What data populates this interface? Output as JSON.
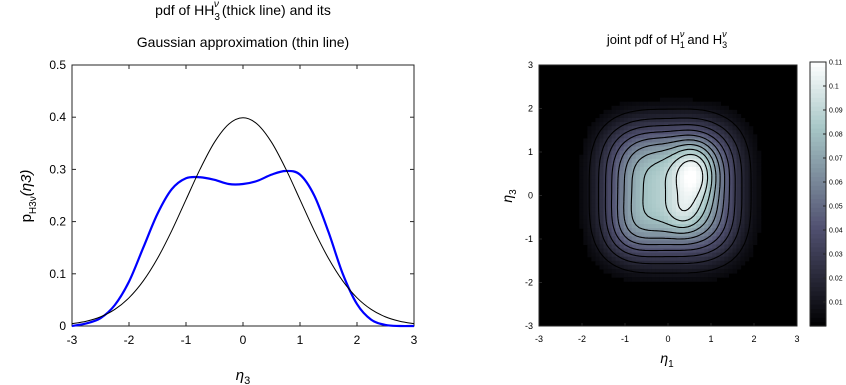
{
  "chart_data": [
    {
      "type": "line",
      "title": "pdf of H3ν (thick line) and its Gaussian approximation (thin line)",
      "title_lines": [
        "pdf of H",
        "(thick line) and its",
        "Gaussian approximation (thin line)"
      ],
      "title_sym": {
        "base": "H",
        "sub": "3",
        "sup": "ν"
      },
      "xlabel": {
        "base": "η",
        "sub": "3"
      },
      "ylabel": {
        "base": "p",
        "sub": "H3ν",
        "arg": "(η3)"
      },
      "xlim": [
        -3,
        3
      ],
      "ylim": [
        0,
        0.5
      ],
      "xticks": [
        "-3",
        "-2",
        "-1",
        "0",
        "1",
        "2",
        "3"
      ],
      "yticks": [
        "0",
        "0.1",
        "0.2",
        "0.3",
        "0.4",
        "0.5"
      ],
      "series": [
        {
          "name": "pdf of H3ν (thick line)",
          "color": "#0000ff",
          "x": [
            -3.0,
            -2.75,
            -2.5,
            -2.25,
            -2.0,
            -1.75,
            -1.5,
            -1.25,
            -1.0,
            -0.75,
            -0.5,
            -0.25,
            0.0,
            0.25,
            0.5,
            0.75,
            1.0,
            1.25,
            1.5,
            1.75,
            2.0,
            2.25,
            2.5,
            2.75,
            3.0
          ],
          "y": [
            0.0,
            0.005,
            0.015,
            0.04,
            0.085,
            0.15,
            0.215,
            0.262,
            0.283,
            0.285,
            0.28,
            0.272,
            0.272,
            0.278,
            0.29,
            0.297,
            0.29,
            0.25,
            0.18,
            0.1,
            0.042,
            0.012,
            0.002,
            0.0,
            0.0
          ]
        },
        {
          "name": "Gaussian approximation (thin line)",
          "color": "#000000",
          "x": [
            -3.0,
            -2.75,
            -2.5,
            -2.25,
            -2.0,
            -1.75,
            -1.5,
            -1.25,
            -1.0,
            -0.75,
            -0.5,
            -0.25,
            0.0,
            0.25,
            0.5,
            0.75,
            1.0,
            1.25,
            1.5,
            1.75,
            2.0,
            2.25,
            2.5,
            2.75,
            3.0
          ],
          "y": [
            0.0044,
            0.0091,
            0.0175,
            0.0317,
            0.054,
            0.0863,
            0.1295,
            0.1826,
            0.242,
            0.3011,
            0.3521,
            0.3867,
            0.3989,
            0.3867,
            0.3521,
            0.3011,
            0.242,
            0.1826,
            0.1295,
            0.0863,
            0.054,
            0.0317,
            0.0175,
            0.0091,
            0.0044
          ]
        }
      ]
    },
    {
      "type": "heatmap",
      "title": "joint pdf of H1ν and H3ν",
      "title_parts": [
        "joint pdf of H",
        "and H"
      ],
      "title_sym1": {
        "base": "H",
        "sub": "1",
        "sup": "ν"
      },
      "title_sym2": {
        "base": "H",
        "sub": "3",
        "sup": "ν"
      },
      "xlabel": {
        "base": "η",
        "sub": "1"
      },
      "ylabel": {
        "base": "η",
        "sub": "3"
      },
      "xlim": [
        -3,
        3
      ],
      "ylim": [
        -3,
        3
      ],
      "xticks": [
        "-3",
        "-2",
        "-1",
        "0",
        "1",
        "2",
        "3"
      ],
      "yticks": [
        "-3",
        "-2",
        "-1",
        "0",
        "1",
        "2",
        "3"
      ],
      "colorbar": {
        "range": [
          0,
          0.11
        ],
        "ticks": [
          "0.01",
          "0.02",
          "0.03",
          "0.04",
          "0.05",
          "0.06",
          "0.07",
          "0.08",
          "0.09",
          "0.1",
          "0.11"
        ],
        "colormap": "bone"
      },
      "contour_levels": [
        0.01,
        0.02,
        0.03,
        0.04,
        0.05,
        0.06,
        0.07,
        0.08,
        0.09,
        0.1
      ],
      "peak": {
        "x": 0.6,
        "y": 0.5,
        "value": 0.11
      }
    }
  ]
}
